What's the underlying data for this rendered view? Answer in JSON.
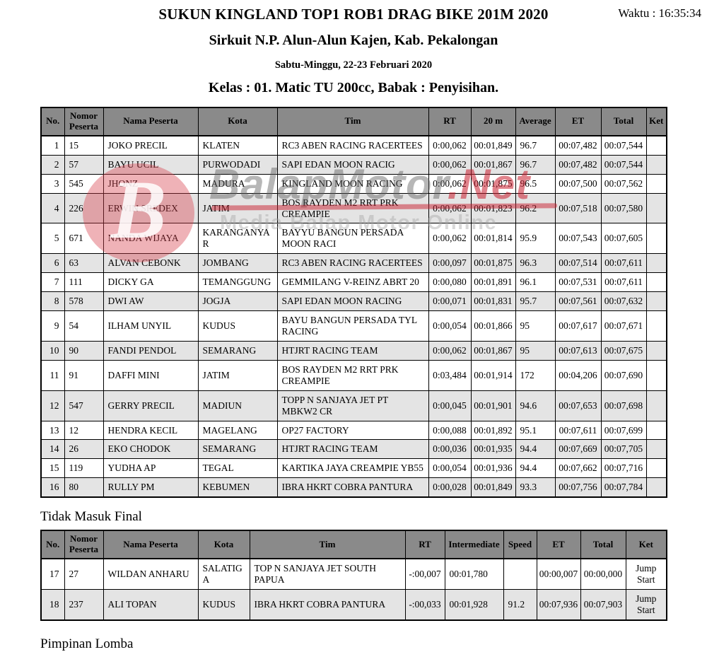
{
  "header": {
    "title": "SUKUN KINGLAND TOP1 ROB1 DRAG BIKE 201M 2020",
    "waktu": "Waktu : 16:35:34",
    "venue": "Sirkuit N.P. Alun-Alun Kajen, Kab. Pekalongan",
    "date": "Sabtu-Minggu, 22-23 Februari 2020",
    "class_line": "Kelas : 01. Matic TU 200cc, Babak : Penyisihan."
  },
  "main_table": {
    "columns": [
      "No.",
      "Nomor Peserta",
      "Nama Peserta",
      "Kota",
      "Tim",
      "RT",
      "20 m",
      "Average",
      "ET",
      "Total",
      "Ket"
    ],
    "rows": [
      [
        "1",
        "15",
        "JOKO PRECIL",
        "KLATEN",
        "RC3 ABEN RACING RACERTEES",
        "0:00,062",
        "00:01,849",
        "96.7",
        "00:07,482",
        "00:07,544",
        ""
      ],
      [
        "2",
        "57",
        "BAYU UCIL",
        "PURWODADI",
        "SAPI EDAN MOON RACIG",
        "0:00,062",
        "00:01,867",
        "96.7",
        "00:07,482",
        "00:07,544",
        ""
      ],
      [
        "3",
        "545",
        "JHONZ",
        "MADURA",
        "KINGLAND MOON RACING",
        "0:00,062",
        "00:01,875",
        "96.5",
        "00:07,500",
        "00:07,562",
        ""
      ],
      [
        "4",
        "226",
        "ERWIN SREDEX",
        "JATIM",
        "BOS RAYDEN M2 RRT PRK CREAMPIE",
        "0:00,062",
        "00:01,823",
        "96.2",
        "00:07,518",
        "00:07,580",
        ""
      ],
      [
        "5",
        "671",
        "NANDA WIJAYA",
        "KARANGANYAR",
        "BAYYU BANGUN PERSADA MOON RACI",
        "0:00,062",
        "00:01,814",
        "95.9",
        "00:07,543",
        "00:07,605",
        ""
      ],
      [
        "6",
        "63",
        "ALVAN CEBONK",
        "JOMBANG",
        "RC3 ABEN RACING RACERTEES",
        "0:00,097",
        "00:01,875",
        "96.3",
        "00:07,514",
        "00:07,611",
        ""
      ],
      [
        "7",
        "111",
        "DICKY GA",
        "TEMANGGUNG",
        "GEMMILANG V-REINZ ABRT 20",
        "0:00,080",
        "00:01,891",
        "96.1",
        "00:07,531",
        "00:07,611",
        ""
      ],
      [
        "8",
        "578",
        "DWI AW",
        "JOGJA",
        "SAPI EDAN MOON RACING",
        "0:00,071",
        "00:01,831",
        "95.7",
        "00:07,561",
        "00:07,632",
        ""
      ],
      [
        "9",
        "54",
        "ILHAM UNYIL",
        "KUDUS",
        "BAYU BANGUN PERSADA TYL RACING",
        "0:00,054",
        "00:01,866",
        "95",
        "00:07,617",
        "00:07,671",
        ""
      ],
      [
        "10",
        "90",
        "FANDI PENDOL",
        "SEMARANG",
        "HTJRT RACING TEAM",
        "0:00,062",
        "00:01,867",
        "95",
        "00:07,613",
        "00:07,675",
        ""
      ],
      [
        "11",
        "91",
        "DAFFI MINI",
        "JATIM",
        "BOS RAYDEN M2 RRT PRK CREAMPIE",
        "0:03,484",
        "00:01,914",
        "172",
        "00:04,206",
        "00:07,690",
        ""
      ],
      [
        "12",
        "547",
        "GERRY PRECIL",
        "MADIUN",
        "TOPP N SANJAYA JET PT MBKW2 CR",
        "0:00,045",
        "00:01,901",
        "94.6",
        "00:07,653",
        "00:07,698",
        ""
      ],
      [
        "13",
        "12",
        "HENDRA KECIL",
        "MAGELANG",
        "OP27 FACTORY",
        "0:00,088",
        "00:01,892",
        "95.1",
        "00:07,611",
        "00:07,699",
        ""
      ],
      [
        "14",
        "26",
        "EKO CHODOK",
        "SEMARANG",
        "HTJRT RACING TEAM",
        "0:00,036",
        "00:01,935",
        "94.4",
        "00:07,669",
        "00:07,705",
        ""
      ],
      [
        "15",
        "119",
        "YUDHA AP",
        "TEGAL",
        "KARTIKA JAYA CREAMPIE YB55",
        "0:00,054",
        "00:01,936",
        "94.4",
        "00:07,662",
        "00:07,716",
        ""
      ],
      [
        "16",
        "80",
        "RULLY PM",
        "KEBUMEN",
        "IBRA HKRT COBRA PANTURA",
        "0:00,028",
        "00:01,849",
        "93.3",
        "00:07,756",
        "00:07,784",
        ""
      ]
    ]
  },
  "not_final": {
    "heading": "Tidak Masuk Final",
    "columns": [
      "No.",
      "Nomor Peserta",
      "Nama Peserta",
      "Kota",
      "Tim",
      "RT",
      "Intermediate",
      "Speed",
      "ET",
      "Total",
      "Ket"
    ],
    "rows": [
      [
        "17",
        "27",
        "WILDAN ANHARU",
        "SALATIGA",
        "TOP N SANJAYA JET SOUTH PAPUA",
        "-:00,007",
        "00:01,780",
        "",
        "00:00,007",
        "00:00,000",
        "Jump Start"
      ],
      [
        "18",
        "237",
        "ALI TOPAN",
        "KUDUS",
        "IBRA HKRT COBRA PANTURA",
        "-:00,033",
        "00:01,928",
        "91.2",
        "00:07,936",
        "00:07,903",
        "Jump Start"
      ]
    ]
  },
  "footer": {
    "heading": "Pimpinan Lomba"
  },
  "watermark": {
    "logo_letter": "B",
    "brand_gray": "BalapMotor",
    "brand_red": ".Net",
    "tagline": "Media Balap Motor Online"
  },
  "colors": {
    "table_header_bg": "#8a8a8a",
    "row_alt_bg": "#e4e4e4",
    "border": "#000000",
    "watermark_red": "#c81e2d",
    "watermark_gray": "#5f5f5f"
  }
}
